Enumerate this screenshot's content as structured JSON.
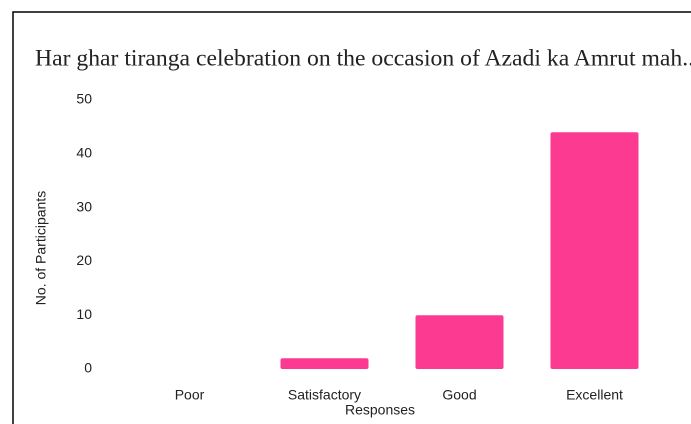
{
  "chart_data": {
    "type": "bar",
    "title": "Har ghar tiranga celebration on the occasion of Azadi ka Amrut mah...",
    "x_label": "Responses",
    "y_label": "No. of Participants",
    "categories": [
      "Poor",
      "Satisfactory",
      "Good",
      "Excellent"
    ],
    "values": [
      0,
      2,
      10,
      44
    ],
    "color": "#fc3a91",
    "ylim": [
      0,
      50
    ],
    "yticks": [
      0,
      10,
      20,
      30,
      40,
      50
    ],
    "grid": false
  }
}
